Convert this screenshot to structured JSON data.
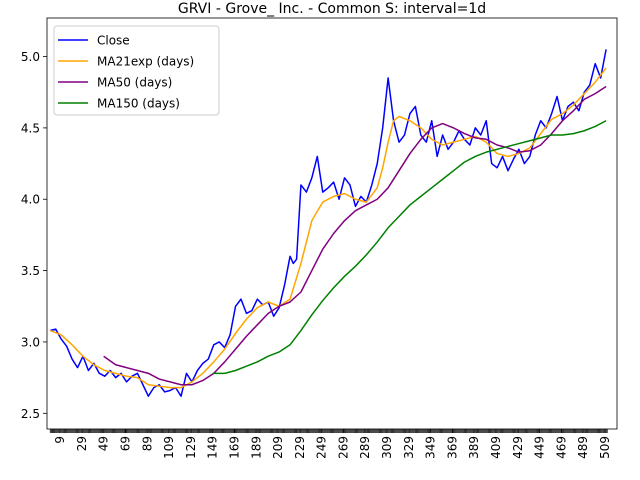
{
  "chart_data": {
    "type": "line",
    "title": "GRVI - Grove_ Inc. - Common S: interval=1d",
    "xlabel": "",
    "ylabel": "",
    "xlim": [
      -3,
      520
    ],
    "ylim": [
      2.39,
      5.27
    ],
    "yticks": [
      2.5,
      3.0,
      3.5,
      4.0,
      4.5,
      5.0
    ],
    "ytick_labels": [
      "2.5",
      "3.0",
      "3.5",
      "4.0",
      "4.5",
      "5.0"
    ],
    "xticks": [
      9,
      29,
      49,
      69,
      89,
      109,
      129,
      149,
      169,
      189,
      209,
      229,
      249,
      269,
      289,
      309,
      329,
      349,
      369,
      389,
      409,
      429,
      449,
      469,
      489,
      509
    ],
    "xtick_labels": [
      "9",
      "29",
      "49",
      "69",
      "89",
      "109",
      "129",
      "149",
      "169",
      "189",
      "209",
      "229",
      "249",
      "269",
      "289",
      "309",
      "329",
      "349",
      "369",
      "389",
      "409",
      "429",
      "449",
      "469",
      "489",
      "509"
    ],
    "x_minor_every": 1,
    "x_minor_start": 0,
    "x_minor_end": 511,
    "legend_position": "upper-left",
    "grid": false,
    "series": [
      {
        "name": "Close",
        "color": "#0000ff",
        "x": [
          0,
          5,
          10,
          15,
          20,
          25,
          30,
          35,
          40,
          45,
          50,
          55,
          60,
          65,
          70,
          75,
          80,
          85,
          90,
          95,
          100,
          105,
          110,
          115,
          120,
          125,
          130,
          135,
          140,
          145,
          150,
          155,
          160,
          165,
          170,
          175,
          180,
          185,
          190,
          195,
          200,
          205,
          210,
          215,
          220,
          223,
          226,
          230,
          235,
          240,
          245,
          250,
          255,
          260,
          265,
          270,
          275,
          280,
          285,
          290,
          295,
          300,
          305,
          310,
          315,
          320,
          325,
          330,
          335,
          340,
          345,
          350,
          355,
          360,
          365,
          370,
          375,
          380,
          385,
          390,
          395,
          400,
          405,
          410,
          415,
          420,
          425,
          430,
          435,
          440,
          445,
          450,
          455,
          460,
          465,
          470,
          475,
          480,
          485,
          490,
          495,
          500,
          505,
          510
        ],
        "y": [
          3.08,
          3.09,
          3.02,
          2.97,
          2.88,
          2.82,
          2.9,
          2.8,
          2.85,
          2.78,
          2.76,
          2.8,
          2.75,
          2.78,
          2.72,
          2.76,
          2.78,
          2.7,
          2.62,
          2.68,
          2.7,
          2.65,
          2.66,
          2.68,
          2.62,
          2.78,
          2.72,
          2.8,
          2.85,
          2.88,
          2.98,
          3.0,
          2.96,
          3.05,
          3.25,
          3.3,
          3.2,
          3.22,
          3.3,
          3.26,
          3.28,
          3.18,
          3.24,
          3.4,
          3.6,
          3.55,
          3.58,
          4.1,
          4.05,
          4.15,
          4.3,
          4.05,
          4.08,
          4.12,
          4.0,
          4.15,
          4.1,
          3.95,
          4.02,
          3.98,
          4.1,
          4.25,
          4.5,
          4.85,
          4.55,
          4.4,
          4.45,
          4.6,
          4.65,
          4.45,
          4.4,
          4.55,
          4.3,
          4.45,
          4.35,
          4.4,
          4.48,
          4.42,
          4.38,
          4.5,
          4.45,
          4.55,
          4.25,
          4.22,
          4.3,
          4.2,
          4.28,
          4.35,
          4.25,
          4.3,
          4.45,
          4.55,
          4.5,
          4.6,
          4.72,
          4.55,
          4.65,
          4.68,
          4.62,
          4.75,
          4.8,
          4.95,
          4.85,
          5.05
        ]
      },
      {
        "name": "MA21exp (days)",
        "color": "#ffa500",
        "x": [
          0,
          10,
          20,
          30,
          40,
          50,
          60,
          70,
          80,
          90,
          100,
          110,
          120,
          130,
          140,
          150,
          160,
          170,
          180,
          190,
          200,
          210,
          220,
          230,
          240,
          250,
          260,
          270,
          280,
          290,
          300,
          305,
          310,
          315,
          320,
          330,
          340,
          350,
          360,
          370,
          380,
          390,
          400,
          410,
          420,
          430,
          440,
          450,
          460,
          470,
          480,
          490,
          500,
          510
        ],
        "y": [
          3.08,
          3.05,
          2.98,
          2.9,
          2.84,
          2.8,
          2.78,
          2.76,
          2.75,
          2.7,
          2.69,
          2.68,
          2.68,
          2.72,
          2.78,
          2.86,
          2.95,
          3.06,
          3.16,
          3.24,
          3.28,
          3.25,
          3.3,
          3.55,
          3.85,
          3.98,
          4.02,
          4.04,
          4.0,
          3.98,
          4.08,
          4.22,
          4.4,
          4.55,
          4.58,
          4.55,
          4.5,
          4.42,
          4.38,
          4.4,
          4.42,
          4.44,
          4.4,
          4.32,
          4.3,
          4.32,
          4.36,
          4.46,
          4.56,
          4.6,
          4.66,
          4.74,
          4.82,
          4.92
        ]
      },
      {
        "name": "MA50 (days)",
        "color": "#800080",
        "x": [
          49,
          60,
          70,
          80,
          90,
          100,
          110,
          120,
          130,
          140,
          150,
          160,
          170,
          180,
          190,
          200,
          210,
          220,
          230,
          240,
          250,
          260,
          270,
          280,
          290,
          300,
          310,
          320,
          330,
          340,
          350,
          360,
          370,
          380,
          390,
          400,
          410,
          420,
          430,
          440,
          450,
          460,
          470,
          480,
          490,
          500,
          510
        ],
        "y": [
          2.9,
          2.84,
          2.82,
          2.8,
          2.78,
          2.74,
          2.72,
          2.7,
          2.7,
          2.73,
          2.78,
          2.86,
          2.95,
          3.04,
          3.12,
          3.2,
          3.25,
          3.28,
          3.35,
          3.5,
          3.65,
          3.76,
          3.85,
          3.92,
          3.96,
          4.0,
          4.08,
          4.2,
          4.32,
          4.42,
          4.5,
          4.53,
          4.5,
          4.46,
          4.43,
          4.42,
          4.38,
          4.36,
          4.33,
          4.34,
          4.38,
          4.46,
          4.55,
          4.62,
          4.7,
          4.74,
          4.79
        ]
      },
      {
        "name": "MA150 (days)",
        "color": "#008000",
        "x": [
          149,
          160,
          170,
          180,
          190,
          200,
          210,
          220,
          230,
          240,
          250,
          260,
          270,
          280,
          290,
          300,
          310,
          320,
          330,
          340,
          350,
          360,
          370,
          380,
          390,
          400,
          410,
          420,
          430,
          440,
          450,
          460,
          470,
          480,
          490,
          500,
          510
        ],
        "y": [
          2.78,
          2.78,
          2.8,
          2.83,
          2.86,
          2.9,
          2.93,
          2.98,
          3.08,
          3.19,
          3.29,
          3.38,
          3.46,
          3.53,
          3.61,
          3.7,
          3.8,
          3.88,
          3.96,
          4.02,
          4.08,
          4.14,
          4.2,
          4.26,
          4.3,
          4.33,
          4.35,
          4.37,
          4.39,
          4.41,
          4.43,
          4.45,
          4.45,
          4.46,
          4.48,
          4.51,
          4.55
        ]
      }
    ]
  }
}
